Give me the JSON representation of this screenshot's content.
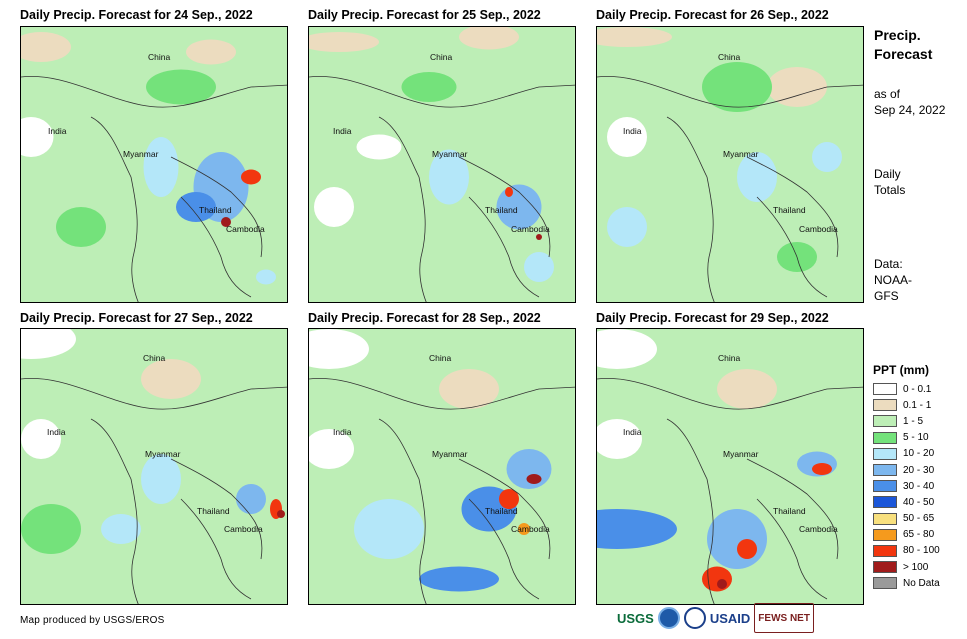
{
  "panels": [
    {
      "title": "Daily Precip. Forecast for 24 Sep., 2022",
      "country_labels": [
        "China",
        "India",
        "Myanmar",
        "Thailand",
        "Cambodia"
      ]
    },
    {
      "title": "Daily Precip. Forecast for 25 Sep., 2022",
      "country_labels": [
        "China",
        "India",
        "Myanmar",
        "Thailand",
        "Cambodia"
      ]
    },
    {
      "title": "Daily Precip. Forecast for 26 Sep., 2022",
      "country_labels": [
        "China",
        "India",
        "Myanmar",
        "Thailand",
        "Cambodia"
      ]
    },
    {
      "title": "Daily Precip. Forecast for 27 Sep., 2022",
      "country_labels": [
        "China",
        "India",
        "Myanmar",
        "Thailand",
        "Cambodia"
      ]
    },
    {
      "title": "Daily Precip. Forecast for 28 Sep., 2022",
      "country_labels": [
        "China",
        "India",
        "Myanmar",
        "Thailand",
        "Cambodia"
      ]
    },
    {
      "title": "Daily Precip. Forecast for 29 Sep., 2022",
      "country_labels": [
        "China",
        "India",
        "Myanmar",
        "Thailand",
        "Cambodia"
      ]
    }
  ],
  "sidebar": {
    "title_line1": "Precip.",
    "title_line2": "Forecast",
    "asof_line1": "as of",
    "asof_line2": "Sep 24, 2022",
    "totals_line1": "Daily",
    "totals_line2": "Totals",
    "data_line1": "Data:",
    "data_line2": "NOAA-",
    "data_line3": "GFS"
  },
  "legend": {
    "title": "PPT (mm)",
    "items": [
      {
        "label": "0 - 0.1",
        "color": "#ffffff"
      },
      {
        "label": "0.1 - 1",
        "color": "#ecdcbf"
      },
      {
        "label": "1 - 5",
        "color": "#bdeeb6"
      },
      {
        "label": "5 - 10",
        "color": "#74e27b"
      },
      {
        "label": "10 - 20",
        "color": "#b4e7f9"
      },
      {
        "label": "20 - 30",
        "color": "#7db7ee"
      },
      {
        "label": "30 - 40",
        "color": "#4a8fe8"
      },
      {
        "label": "40 - 50",
        "color": "#1b56d9"
      },
      {
        "label": "50 - 65",
        "color": "#f8e07e"
      },
      {
        "label": "65 - 80",
        "color": "#f59a1d"
      },
      {
        "label": "80 - 100",
        "color": "#f2360f"
      },
      {
        "label": "> 100",
        "color": "#a01b1b"
      },
      {
        "label": "No Data",
        "color": "#9a9a9a"
      }
    ]
  },
  "credit": "Map produced by USGS/EROS",
  "logos": {
    "usgs": "USGS",
    "usaid": "USAID",
    "fews": "FEWS NET"
  }
}
